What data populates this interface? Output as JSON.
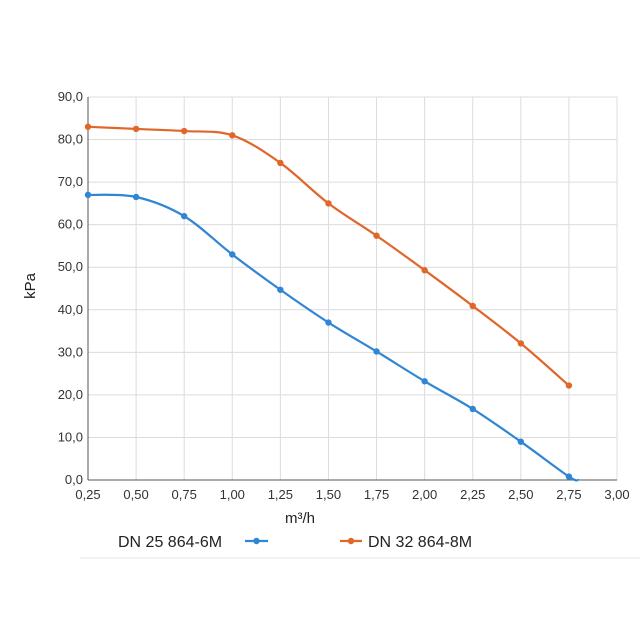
{
  "chart_data": {
    "type": "line",
    "xlabel": "m³/h",
    "ylabel": "kPa",
    "xlim": [
      0.25,
      3.0
    ],
    "ylim": [
      0,
      90
    ],
    "x_ticks": [
      "0,25",
      "0,50",
      "0,75",
      "1,00",
      "1,25",
      "1,50",
      "1,75",
      "2,00",
      "2,25",
      "2,50",
      "2,75",
      "3,00"
    ],
    "y_ticks": [
      "0,0",
      "10,0",
      "20,0",
      "30,0",
      "40,0",
      "50,0",
      "60,0",
      "70,0",
      "80,0",
      "90,0"
    ],
    "grid": true,
    "legend_position": "bottom",
    "series": [
      {
        "name": "DN 25 864-6M",
        "color": "#2f86d4",
        "x": [
          0.25,
          0.5,
          0.75,
          1.0,
          1.25,
          1.5,
          1.75,
          2.0,
          2.25,
          2.5,
          2.75
        ],
        "values": [
          67,
          66.5,
          62,
          53,
          44.7,
          37,
          30.2,
          23.2,
          16.7,
          9,
          0.8
        ],
        "line_end": [
          2.8,
          0
        ]
      },
      {
        "name": "DN 32 864-8M",
        "color": "#e0662a",
        "x": [
          0.25,
          0.5,
          0.75,
          1.0,
          1.25,
          1.5,
          1.75,
          2.0,
          2.25,
          2.5,
          2.75
        ],
        "values": [
          83,
          82.5,
          82,
          81,
          74.5,
          65,
          57.4,
          49.3,
          40.9,
          32.1,
          22.2
        ]
      }
    ]
  }
}
